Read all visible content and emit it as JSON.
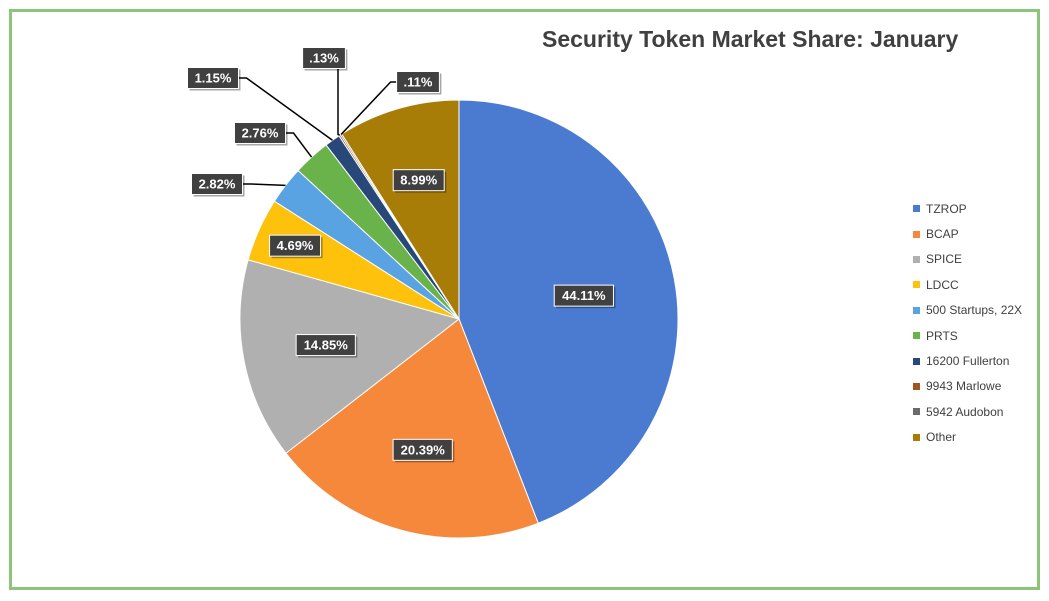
{
  "chart_data": {
    "type": "pie",
    "title": "Security Token Market Share: January",
    "slices": [
      {
        "label": "TZROP",
        "value": 44.11,
        "display": "44.11%",
        "color": "#4a7bd1"
      },
      {
        "label": "BCAP",
        "value": 20.39,
        "display": "20.39%",
        "color": "#f6883b"
      },
      {
        "label": "SPICE",
        "value": 14.85,
        "display": "14.85%",
        "color": "#b0b0b0"
      },
      {
        "label": "LDCC",
        "value": 4.69,
        "display": "4.69%",
        "color": "#fec20c"
      },
      {
        "label": "500 Startups, 22X",
        "value": 2.82,
        "display": "2.82%",
        "color": "#5aa3e2"
      },
      {
        "label": "PRTS",
        "value": 2.76,
        "display": "2.76%",
        "color": "#6ab34a"
      },
      {
        "label": "16200 Fullerton",
        "value": 1.15,
        "display": "1.15%",
        "color": "#274878"
      },
      {
        "label": "9943 Marlowe",
        "value": 0.13,
        "display": ".13%",
        "color": "#a5531e"
      },
      {
        "label": "5942 Audobon",
        "value": 0.11,
        "display": ".11%",
        "color": "#6b6b6b"
      },
      {
        "label": "Other",
        "value": 8.99,
        "display": "8.99%",
        "color": "#a77d08"
      }
    ],
    "legend_position": "right"
  }
}
